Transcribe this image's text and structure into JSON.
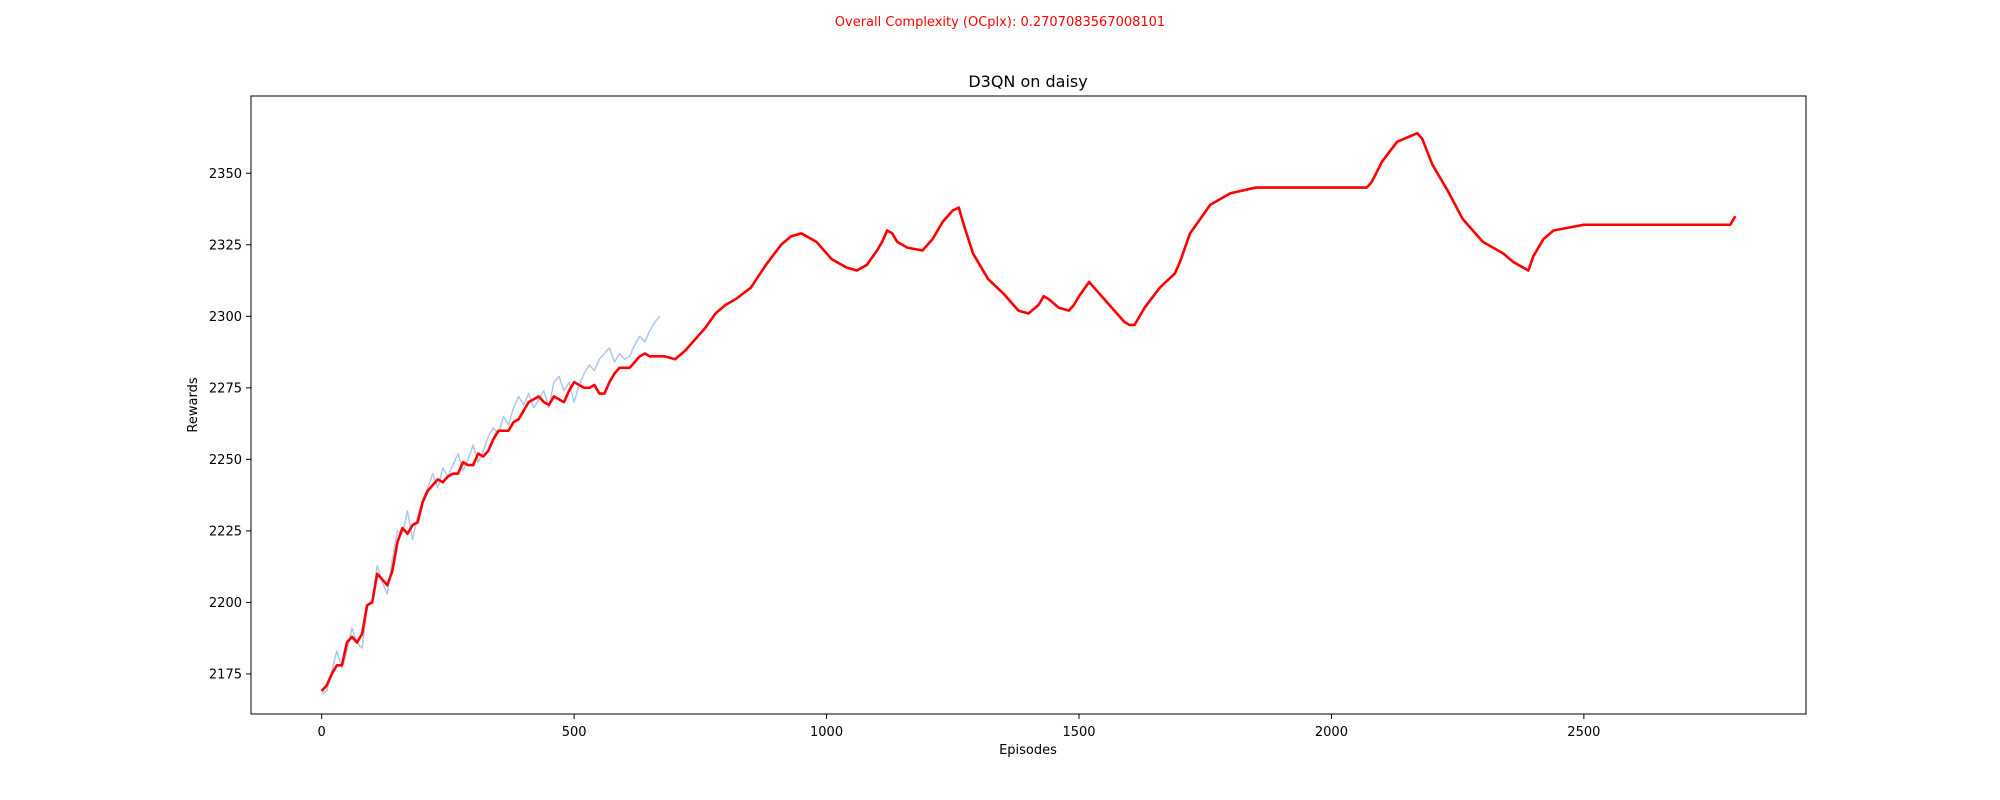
{
  "header": {
    "complexity_text": "Overall Complexity (OCplx): 0.2707083567008101",
    "complexity_color": "#ff0000"
  },
  "chart_data": {
    "type": "line",
    "title": "D3QN on daisy",
    "xlabel": "Episodes",
    "ylabel": "Rewards",
    "xlim": [
      -140,
      2940
    ],
    "ylim": [
      2161,
      2377
    ],
    "xticks": [
      0,
      500,
      1000,
      1500,
      2000,
      2500
    ],
    "yticks": [
      2175,
      2200,
      2225,
      2250,
      2275,
      2300,
      2325,
      2350
    ],
    "grid": false,
    "series": [
      {
        "color": "#aec7e8",
        "x": [
          0,
          10,
          20,
          30,
          40,
          50,
          60,
          70,
          80,
          90,
          100,
          110,
          120,
          130,
          140,
          150,
          160,
          170,
          180,
          190,
          200,
          210,
          220,
          230,
          240,
          250,
          260,
          270,
          280,
          290,
          300,
          310,
          320,
          330,
          340,
          350,
          360,
          370,
          380,
          390,
          400,
          410,
          420,
          430,
          440,
          450,
          460,
          470,
          480,
          490,
          500,
          510,
          520,
          530,
          540,
          550,
          560,
          570,
          580,
          590,
          600,
          610,
          620,
          630,
          640,
          650,
          660,
          670
        ],
        "y": [
          2168,
          2169,
          2176,
          2183,
          2177,
          2183,
          2191,
          2186,
          2184,
          2199,
          2201,
          2213,
          2207,
          2203,
          2215,
          2225,
          2224,
          2232,
          2222,
          2230,
          2236,
          2240,
          2245,
          2240,
          2247,
          2244,
          2248,
          2252,
          2246,
          2250,
          2255,
          2249,
          2253,
          2258,
          2261,
          2259,
          2265,
          2262,
          2268,
          2272,
          2269,
          2273,
          2268,
          2271,
          2274,
          2268,
          2277,
          2279,
          2274,
          2277,
          2270,
          2276,
          2280,
          2283,
          2281,
          2285,
          2287,
          2289,
          2284,
          2287,
          2285,
          2286,
          2290,
          2293,
          2291,
          2295,
          2298,
          2300
        ]
      },
      {
        "color": "#ff0000",
        "x": [
          0,
          10,
          20,
          30,
          40,
          50,
          60,
          70,
          80,
          90,
          100,
          110,
          120,
          130,
          140,
          150,
          160,
          170,
          180,
          190,
          200,
          210,
          220,
          230,
          240,
          250,
          260,
          270,
          280,
          290,
          300,
          310,
          320,
          330,
          340,
          350,
          360,
          370,
          380,
          390,
          400,
          410,
          420,
          430,
          440,
          450,
          460,
          470,
          480,
          490,
          500,
          510,
          520,
          530,
          540,
          550,
          560,
          570,
          580,
          590,
          600,
          610,
          620,
          630,
          640,
          650,
          660,
          680,
          700,
          720,
          740,
          760,
          780,
          800,
          820,
          850,
          880,
          910,
          930,
          950,
          980,
          1010,
          1040,
          1060,
          1080,
          1100,
          1110,
          1120,
          1130,
          1140,
          1160,
          1190,
          1210,
          1230,
          1250,
          1262,
          1270,
          1290,
          1320,
          1350,
          1380,
          1400,
          1420,
          1430,
          1440,
          1460,
          1480,
          1490,
          1500,
          1520,
          1530,
          1550,
          1570,
          1590,
          1600,
          1610,
          1630,
          1660,
          1690,
          1700,
          1720,
          1760,
          1800,
          1850,
          1900,
          2000,
          2070,
          2080,
          2100,
          2130,
          2170,
          2180,
          2200,
          2230,
          2260,
          2300,
          2340,
          2360,
          2380,
          2390,
          2400,
          2420,
          2440,
          2500,
          2600,
          2700,
          2790,
          2800
        ],
        "y": [
          2169,
          2171,
          2175,
          2178,
          2178,
          2186,
          2188,
          2186,
          2189,
          2199,
          2200,
          2210,
          2208,
          2206,
          2211,
          2221,
          2226,
          2224,
          2227,
          2228,
          2235,
          2239,
          2241,
          2243,
          2242,
          2244,
          2245,
          2245,
          2249,
          2248,
          2248,
          2252,
          2251,
          2253,
          2257,
          2260,
          2260,
          2260,
          2263,
          2264,
          2267,
          2270,
          2271,
          2272,
          2270,
          2269,
          2272,
          2271,
          2270,
          2274,
          2277,
          2276,
          2275,
          2275,
          2276,
          2273,
          2273,
          2277,
          2280,
          2282,
          2282,
          2282,
          2284,
          2286,
          2287,
          2286,
          2286,
          2286,
          2285,
          2288,
          2292,
          2296,
          2301,
          2304,
          2306,
          2310,
          2318,
          2325,
          2328,
          2329,
          2326,
          2320,
          2317,
          2316,
          2318,
          2323,
          2326,
          2330,
          2329,
          2326,
          2324,
          2323,
          2327,
          2333,
          2337,
          2338,
          2333,
          2322,
          2313,
          2308,
          2302,
          2301,
          2304,
          2307,
          2306,
          2303,
          2302,
          2304,
          2307,
          2312,
          2310,
          2306,
          2302,
          2298,
          2297,
          2297,
          2303,
          2310,
          2315,
          2319,
          2329,
          2339,
          2343,
          2345,
          2345,
          2345,
          2345,
          2347,
          2354,
          2361,
          2364,
          2362,
          2353,
          2344,
          2334,
          2326,
          2322,
          2319,
          2317,
          2316,
          2321,
          2327,
          2330,
          2332,
          2332,
          2332,
          2332,
          2335
        ]
      }
    ]
  }
}
